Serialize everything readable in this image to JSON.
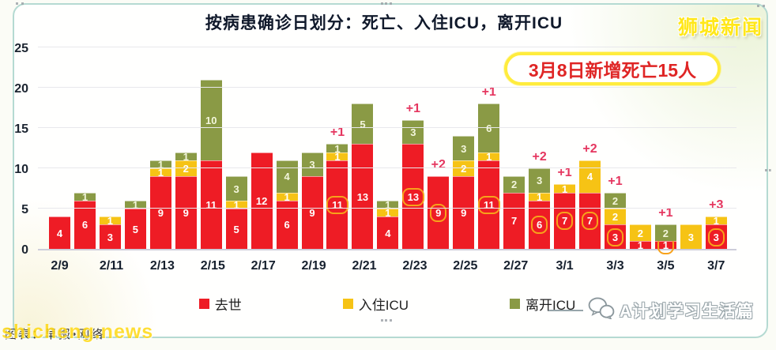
{
  "header": {
    "logo": "狮城新闻"
  },
  "callout": {
    "text": "3月8日新增死亡15人",
    "text_color": "#df2525",
    "border_color": "#ffec3d"
  },
  "chart_data": {
    "type": "bar",
    "stacked": true,
    "title": "按病患确诊日划分：死亡、入住ICU，离开ICU",
    "categories": [
      "2/9",
      "2/10",
      "2/11",
      "2/12",
      "2/13",
      "2/14",
      "2/15",
      "2/16",
      "2/17",
      "2/18",
      "2/19",
      "2/20",
      "2/21",
      "2/22",
      "2/23",
      "2/24",
      "2/25",
      "2/26",
      "2/27",
      "2/28",
      "3/1",
      "3/2",
      "3/3",
      "3/4",
      "3/5",
      "3/6",
      "3/7"
    ],
    "series": [
      {
        "key": "death",
        "name": "去世",
        "color": "#ee1c25",
        "label_color": "#ffffff",
        "values": [
          4,
          6,
          3,
          5,
          9,
          9,
          11,
          5,
          12,
          6,
          9,
          11,
          13,
          4,
          13,
          9,
          9,
          11,
          7,
          6,
          7,
          7,
          3,
          1,
          1,
          0,
          3
        ]
      },
      {
        "key": "icu-in",
        "name": "入住ICU",
        "color": "#f6c315",
        "label_color": "#ffffff",
        "values": [
          0,
          0,
          1,
          0,
          1,
          2,
          0,
          1,
          0,
          1,
          0,
          1,
          0,
          1,
          0,
          0,
          2,
          1,
          0,
          1,
          1,
          4,
          2,
          2,
          0,
          3,
          1
        ]
      },
      {
        "key": "icu-out",
        "name": "离开ICU",
        "color": "#8a9a45",
        "label_color": "#f3f6dc",
        "values": [
          0,
          1,
          0,
          1,
          1,
          1,
          10,
          3,
          0,
          4,
          3,
          1,
          5,
          1,
          3,
          0,
          3,
          6,
          2,
          3,
          0,
          0,
          2,
          0,
          2,
          0,
          0
        ]
      }
    ],
    "annotations": [
      "",
      "",
      "",
      "",
      "",
      "",
      "",
      "",
      "",
      "",
      "",
      "+1",
      "",
      "",
      "+1",
      "+2",
      "",
      "+1",
      "",
      "+2",
      "+1",
      "+2",
      "+1",
      "",
      "+1",
      "",
      "+3"
    ],
    "boxed": [
      false,
      false,
      false,
      false,
      false,
      false,
      false,
      false,
      false,
      false,
      false,
      true,
      false,
      false,
      true,
      true,
      false,
      true,
      false,
      true,
      true,
      true,
      true,
      false,
      true,
      false,
      true
    ],
    "annotation_color": "#e5365f",
    "box_outline_color": "#f7a21b",
    "ylim": [
      0,
      25
    ],
    "yticks": [
      0,
      5,
      10,
      15,
      20,
      25
    ],
    "xtick_every": 2,
    "grid": "horizontal",
    "legend_position": "bottom"
  },
  "footer": {
    "credit": "图表：早报•网络",
    "watermark": "shicheng.news",
    "channel": "A计划学习生活篇"
  },
  "icons": {
    "wechat-icon": "two chat bubbles",
    "legend-swatch": "colored square",
    "selection-handle": "dotted drag handle"
  },
  "colors": {
    "frame_border": "#b5dad2",
    "logo_yellow": "#ffe71a",
    "axis_text": "#1b2430"
  }
}
